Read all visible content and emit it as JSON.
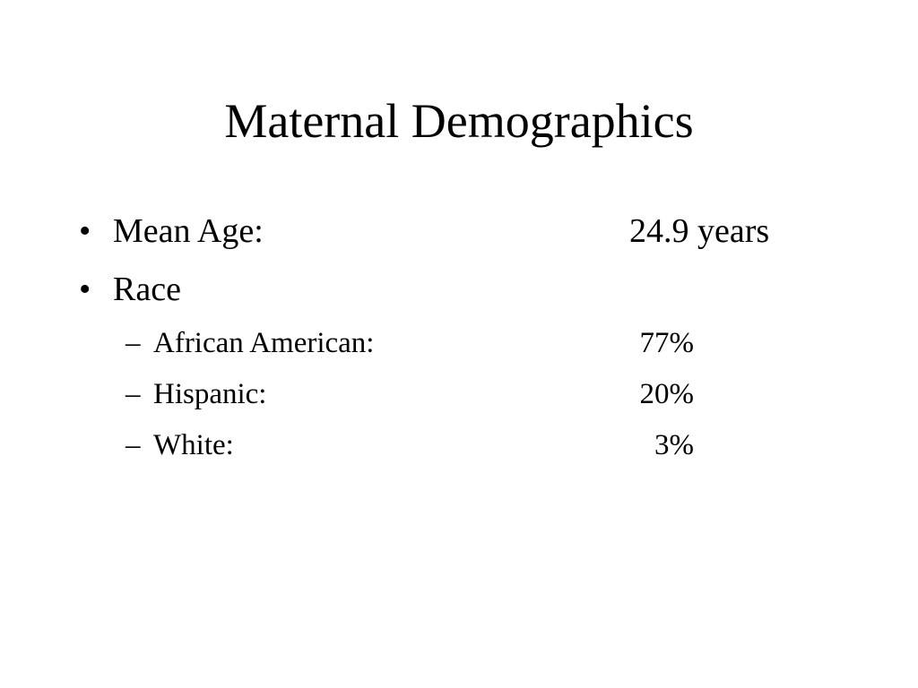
{
  "slide": {
    "title": "Maternal Demographics",
    "bullets": [
      {
        "marker": "•",
        "label": "Mean Age:",
        "value": "24.9 years"
      },
      {
        "marker": "•",
        "label": "Race",
        "value": ""
      }
    ],
    "sub_bullets": [
      {
        "marker": "–",
        "label": "African American:",
        "value": "77%"
      },
      {
        "marker": "–",
        "label": "Hispanic:",
        "value": "20%"
      },
      {
        "marker": "–",
        "label": "White:",
        "value": "3%"
      }
    ]
  }
}
